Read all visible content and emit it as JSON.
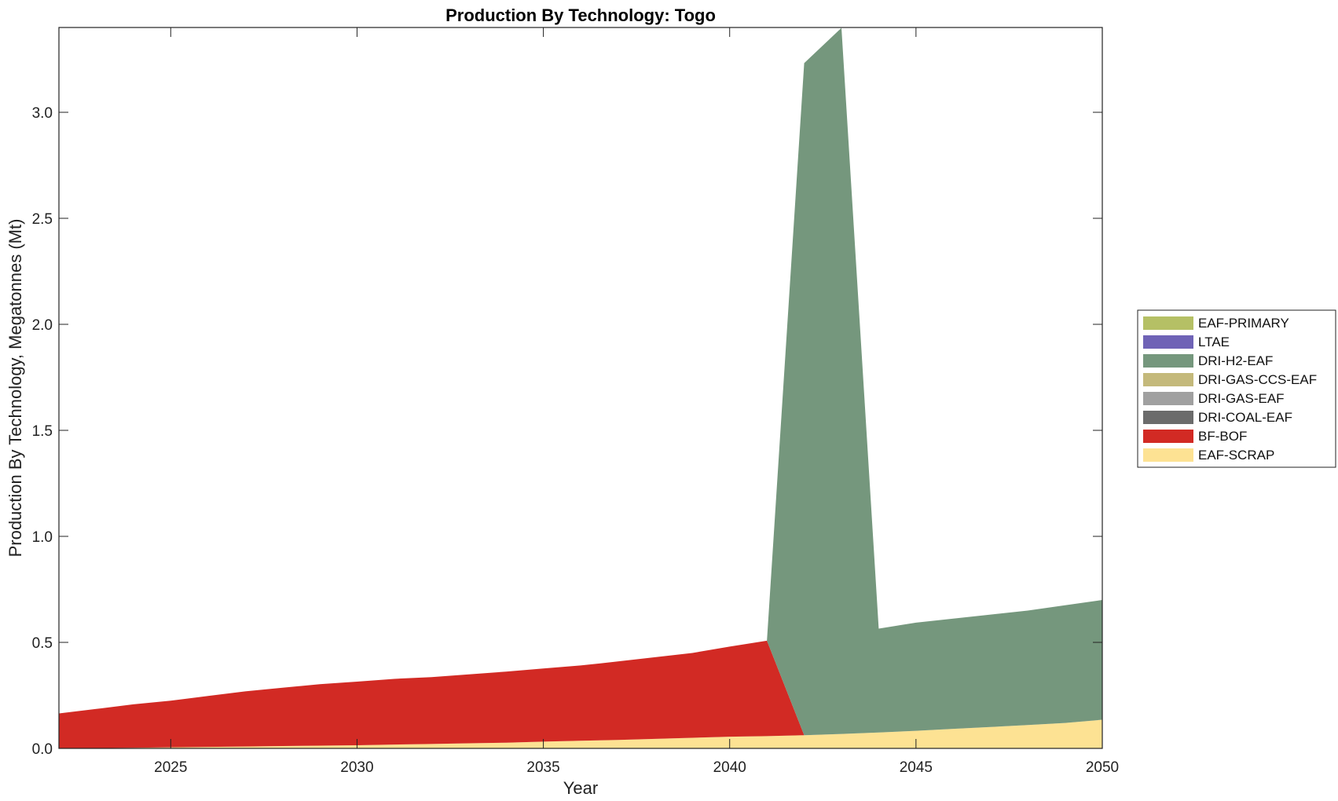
{
  "chart_data": {
    "type": "area",
    "title": "Production By Technology: Togo",
    "xlabel": "Year",
    "ylabel": "Production By Technology, Megatonnes (Mt)",
    "xlim": [
      2022,
      2050
    ],
    "ylim": [
      0,
      3.4
    ],
    "xticks": [
      2025,
      2030,
      2035,
      2040,
      2045,
      2050
    ],
    "yticks": [
      0.0,
      0.5,
      1.0,
      1.5,
      2.0,
      2.5,
      3.0
    ],
    "ytick_labels": [
      "0.0",
      "0.5",
      "1.0",
      "1.5",
      "2.0",
      "2.5",
      "3.0"
    ],
    "grid": false,
    "legend_position": "right",
    "x": [
      2022,
      2023,
      2024,
      2025,
      2026,
      2027,
      2028,
      2029,
      2030,
      2031,
      2032,
      2033,
      2034,
      2035,
      2036,
      2037,
      2038,
      2039,
      2040,
      2041,
      2042,
      2043,
      2044,
      2045,
      2046,
      2047,
      2048,
      2049,
      2050
    ],
    "stack_order": [
      "EAF-SCRAP",
      "BF-BOF",
      "DRI-COAL-EAF",
      "DRI-GAS-EAF",
      "DRI-GAS-CCS-EAF",
      "DRI-H2-EAF",
      "LTAE",
      "EAF-PRIMARY"
    ],
    "legend_order": [
      "EAF-PRIMARY",
      "LTAE",
      "DRI-H2-EAF",
      "DRI-GAS-CCS-EAF",
      "DRI-GAS-EAF",
      "DRI-COAL-EAF",
      "BF-BOF",
      "EAF-SCRAP"
    ],
    "series": [
      {
        "name": "EAF-PRIMARY",
        "color": "#b5c065",
        "values": [
          0,
          0,
          0,
          0,
          0,
          0,
          0,
          0,
          0,
          0,
          0,
          0,
          0,
          0,
          0,
          0,
          0,
          0,
          0,
          0,
          0,
          0,
          0,
          0,
          0,
          0,
          0,
          0,
          0
        ]
      },
      {
        "name": "LTAE",
        "color": "#6f63b6",
        "values": [
          0,
          0,
          0,
          0,
          0,
          0,
          0,
          0,
          0,
          0,
          0,
          0,
          0,
          0,
          0,
          0,
          0,
          0,
          0,
          0,
          0,
          0,
          0,
          0,
          0,
          0,
          0,
          0,
          0
        ]
      },
      {
        "name": "DRI-H2-EAF",
        "color": "#75977d",
        "values": [
          0,
          0,
          0,
          0,
          0,
          0,
          0,
          0,
          0,
          0,
          0,
          0,
          0,
          0,
          0,
          0,
          0,
          0,
          0,
          0,
          3.17,
          3.33,
          0.49,
          0.51,
          0.52,
          0.53,
          0.54,
          0.555,
          0.565
        ]
      },
      {
        "name": "DRI-GAS-CCS-EAF",
        "color": "#c4b97b",
        "values": [
          0,
          0,
          0,
          0,
          0,
          0,
          0,
          0,
          0,
          0,
          0,
          0,
          0,
          0,
          0,
          0,
          0,
          0,
          0,
          0,
          0,
          0,
          0,
          0,
          0,
          0,
          0,
          0,
          0
        ]
      },
      {
        "name": "DRI-GAS-EAF",
        "color": "#a0a0a0",
        "values": [
          0,
          0,
          0,
          0,
          0,
          0,
          0,
          0,
          0,
          0,
          0,
          0,
          0,
          0,
          0,
          0,
          0,
          0,
          0,
          0,
          0,
          0,
          0,
          0,
          0,
          0,
          0,
          0,
          0
        ]
      },
      {
        "name": "DRI-COAL-EAF",
        "color": "#6b6b6b",
        "values": [
          0,
          0,
          0,
          0,
          0,
          0,
          0,
          0,
          0,
          0,
          0,
          0,
          0,
          0,
          0,
          0,
          0,
          0,
          0,
          0,
          0,
          0,
          0,
          0,
          0,
          0,
          0,
          0,
          0
        ]
      },
      {
        "name": "BF-BOF",
        "color": "#d22a24",
        "values": [
          0.165,
          0.185,
          0.205,
          0.22,
          0.24,
          0.26,
          0.275,
          0.29,
          0.3,
          0.31,
          0.315,
          0.325,
          0.335,
          0.345,
          0.355,
          0.37,
          0.385,
          0.4,
          0.425,
          0.45,
          0,
          0,
          0,
          0,
          0,
          0,
          0,
          0,
          0
        ]
      },
      {
        "name": "EAF-SCRAP",
        "color": "#fde293",
        "values": [
          0,
          0.001,
          0.003,
          0.005,
          0.007,
          0.009,
          0.011,
          0.013,
          0.015,
          0.018,
          0.021,
          0.024,
          0.027,
          0.032,
          0.036,
          0.04,
          0.045,
          0.05,
          0.055,
          0.058,
          0.062,
          0.068,
          0.075,
          0.083,
          0.092,
          0.101,
          0.11,
          0.12,
          0.135
        ]
      }
    ]
  }
}
